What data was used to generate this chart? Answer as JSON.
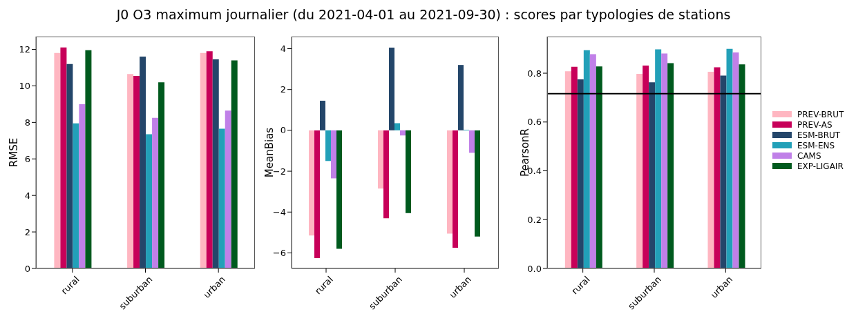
{
  "chart_data": [
    {
      "type": "bar",
      "title": "J0 O3 maximum journalier (du 2021-04-01 au 2021-09-30) : scores par typologies de stations",
      "ylabel": "RMSE",
      "categories": [
        "rural",
        "suburban",
        "urban"
      ],
      "series": [
        {
          "name": "PREV-BRUT",
          "color": "#ffb6c1",
          "values": [
            11.8,
            10.65,
            11.8
          ]
        },
        {
          "name": "PREV-AS",
          "color": "#c70059",
          "values": [
            12.1,
            10.55,
            11.9
          ]
        },
        {
          "name": "ESM-BRUT",
          "color": "#24466a",
          "values": [
            11.2,
            11.6,
            11.45
          ]
        },
        {
          "name": "ESM-ENS",
          "color": "#22a0b8",
          "values": [
            7.95,
            7.35,
            7.65
          ]
        },
        {
          "name": "CAMS",
          "color": "#c080e8",
          "values": [
            9.0,
            8.25,
            8.65
          ]
        },
        {
          "name": "EXP-LIGAIR",
          "color": "#005a1e",
          "values": [
            11.95,
            10.2,
            11.4
          ]
        }
      ],
      "ylim": [
        0,
        12.7
      ],
      "yticks": [
        0,
        2,
        4,
        6,
        8,
        10,
        12
      ],
      "grid": false,
      "legend": "right"
    },
    {
      "type": "bar",
      "ylabel": "MeanBias",
      "categories": [
        "rural",
        "suburban",
        "urban"
      ],
      "series": [
        {
          "color": "#ffb6c1",
          "values": [
            -5.15,
            -2.85,
            -5.05
          ]
        },
        {
          "color": "#c70059",
          "values": [
            -6.25,
            -4.3,
            -5.75
          ]
        },
        {
          "color": "#24466a",
          "values": [
            1.45,
            4.05,
            3.2
          ]
        },
        {
          "color": "#22a0b8",
          "values": [
            -1.5,
            0.35,
            0.03
          ]
        },
        {
          "color": "#c080e8",
          "values": [
            -2.35,
            -0.25,
            -1.1
          ]
        },
        {
          "color": "#005a1e",
          "values": [
            -5.8,
            -4.05,
            -5.2
          ]
        }
      ],
      "ylim": [
        -6.76,
        4.59
      ],
      "yticks": [
        {
          "value": -6,
          "label": "−6"
        },
        {
          "value": -4,
          "label": "−4"
        },
        {
          "value": -2,
          "label": "−2"
        },
        0,
        2,
        4
      ],
      "grid": false
    },
    {
      "type": "bar",
      "ylabel": "PearsonR",
      "categories": [
        "rural",
        "suburban",
        "urban"
      ],
      "series": [
        {
          "color": "#ffb6c1",
          "values": [
            0.808,
            0.797,
            0.806
          ]
        },
        {
          "color": "#c70059",
          "values": [
            0.826,
            0.831,
            0.824
          ]
        },
        {
          "color": "#24466a",
          "values": [
            0.775,
            0.763,
            0.79
          ]
        },
        {
          "color": "#22a0b8",
          "values": [
            0.894,
            0.898,
            0.9
          ]
        },
        {
          "color": "#c080e8",
          "values": [
            0.878,
            0.881,
            0.885
          ]
        },
        {
          "color": "#005a1e",
          "values": [
            0.828,
            0.841,
            0.836
          ]
        }
      ],
      "ylim": [
        0,
        0.95
      ],
      "yticks": [
        {
          "value": 0,
          "label": "0.0"
        },
        0.2,
        0.4,
        0.6,
        0.8
      ],
      "grid": false,
      "ref_lines": [
        {
          "axis": "y",
          "value": 0.716,
          "color": "#000000"
        }
      ]
    }
  ]
}
